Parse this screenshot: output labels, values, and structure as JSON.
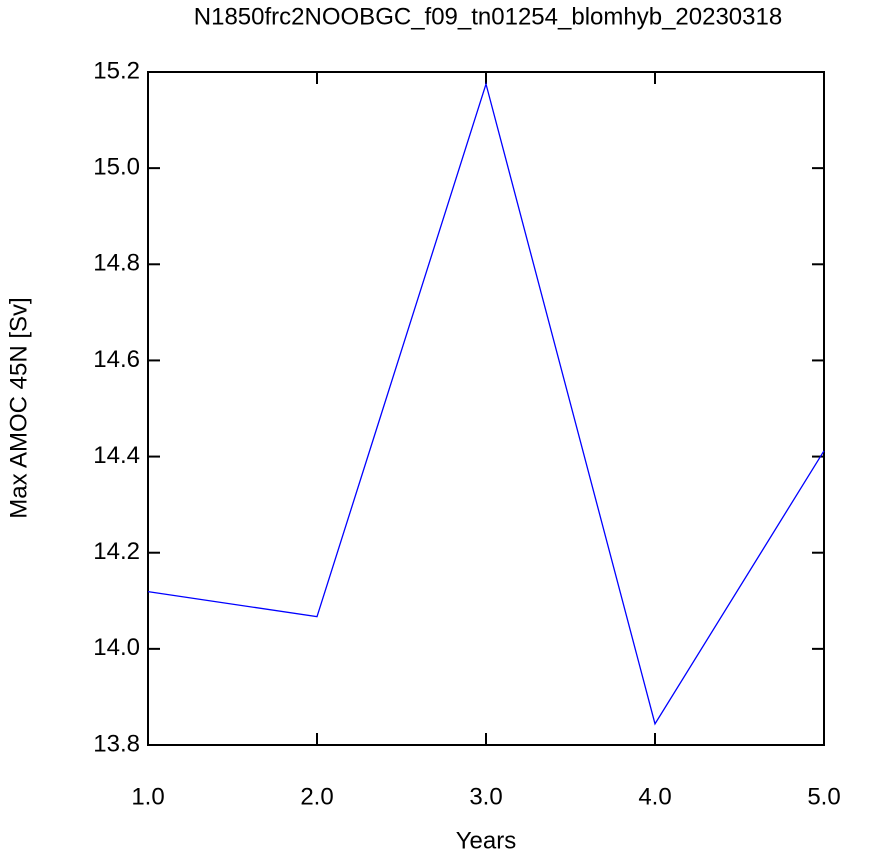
{
  "chart_data": {
    "type": "line",
    "title": "N1850frc2NOOBGC_f09_tn01254_blomhyb_20230318",
    "x_label": "Years",
    "y_label": "Max AMOC 45N [Sv]",
    "x": [
      1,
      2,
      3,
      4,
      5
    ],
    "series": [
      {
        "color": "#0000ff",
        "values": [
          14.119,
          14.067,
          15.175,
          13.844,
          14.412
        ]
      }
    ],
    "xlim": [
      1,
      5
    ],
    "xticks": [
      {
        "value": 1,
        "label": "1.0"
      },
      {
        "value": 2,
        "label": "2.0"
      },
      {
        "value": 3,
        "label": "3.0"
      },
      {
        "value": 4,
        "label": "4.0"
      },
      {
        "value": 5,
        "label": "5.0"
      }
    ],
    "ylim": [
      13.8,
      15.2
    ],
    "yticks": [
      13.8,
      {
        "value": 14.0,
        "label": "14.0"
      },
      14.2,
      14.4,
      14.6,
      14.8,
      {
        "value": 15.0,
        "label": "15.0"
      },
      15.2
    ],
    "grid": false
  }
}
